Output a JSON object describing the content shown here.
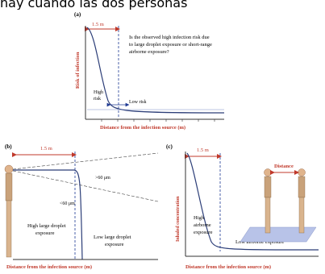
{
  "snippet": "nay cuando las dos personas",
  "panel_a": {
    "tag": "(a)",
    "distance_label": "1.5 m",
    "question": [
      "Is the observed high infection risk due",
      "to large droplet exposure or short-range",
      "airborne exposure?"
    ],
    "ylabel": "Risk of infection",
    "xlabel": "Distance from the infection source (m)",
    "high": [
      "High",
      "risk"
    ],
    "low": "Low risk"
  },
  "panel_b": {
    "tag": "(b)",
    "distance_label": "1.5 m",
    "gt60": ">60 μm",
    "lt60": "<60 μm",
    "high": [
      "High large droplet",
      "exposure"
    ],
    "low": [
      "Low large droplet",
      "exposure"
    ],
    "xlabel": "Distance from the infection source (m)"
  },
  "panel_c": {
    "tag": "(c)",
    "distance_label": "1.5 m",
    "distance_word": "Distance",
    "ylabel": "Inhaled concentration",
    "high": [
      "High",
      "airborne",
      "exposure"
    ],
    "low": "Low airborne exposure",
    "xlabel": "Distance from the infection source (m)"
  },
  "colors": {
    "red": "#c0392b",
    "blue": "#1f3a93",
    "line": "#2c3e78"
  }
}
